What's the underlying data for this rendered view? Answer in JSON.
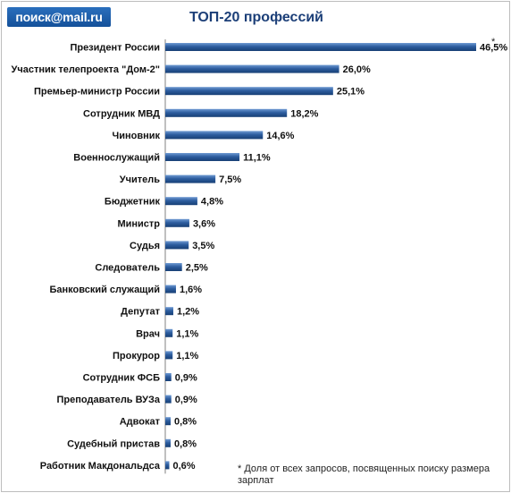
{
  "header": {
    "logo_text": "поиск@mail.ru",
    "title": "ТОП-20 профессий"
  },
  "footnote": {
    "marker": "*",
    "text": "* Доля от всех запросов, посвященных поиску размера зарплат"
  },
  "chart_data": {
    "type": "bar",
    "orientation": "horizontal",
    "title": "ТОП-20 профессий",
    "categories": [
      "Президент России",
      "Участник телепроекта \"Дом-2\"",
      "Премьер-министр России",
      "Сотрудник МВД",
      "Чиновник",
      "Военнослужащий",
      "Учитель",
      "Бюджетник",
      "Министр",
      "Судья",
      "Следователь",
      "Банковский служащий",
      "Депутат",
      "Врач",
      "Прокурор",
      "Сотрудник ФСБ",
      "Преподаватель ВУЗа",
      "Адвокат",
      "Судебный пристав",
      "Работник Макдональдса"
    ],
    "values": [
      46.5,
      26.0,
      25.1,
      18.2,
      14.6,
      11.1,
      7.5,
      4.8,
      3.6,
      3.5,
      2.5,
      1.6,
      1.2,
      1.1,
      1.1,
      0.9,
      0.9,
      0.8,
      0.8,
      0.6
    ],
    "data_labels": [
      "46,5%",
      "26,0%",
      "25,1%",
      "18,2%",
      "14,6%",
      "11,1%",
      "7,5%",
      "4,8%",
      "3,6%",
      "3,5%",
      "2,5%",
      "1,6%",
      "1,2%",
      "1,1%",
      "1,1%",
      "0,9%",
      "0,9%",
      "0,8%",
      "0,8%",
      "0,6%"
    ],
    "xlim": [
      0,
      46.5
    ],
    "grid": false,
    "legend": "none",
    "colors": {
      "bar": "#2d5d9f",
      "bar_light": "#6f9ad3",
      "bar_dark": "#173f75",
      "axis": "#808080",
      "text": "#111111"
    }
  }
}
